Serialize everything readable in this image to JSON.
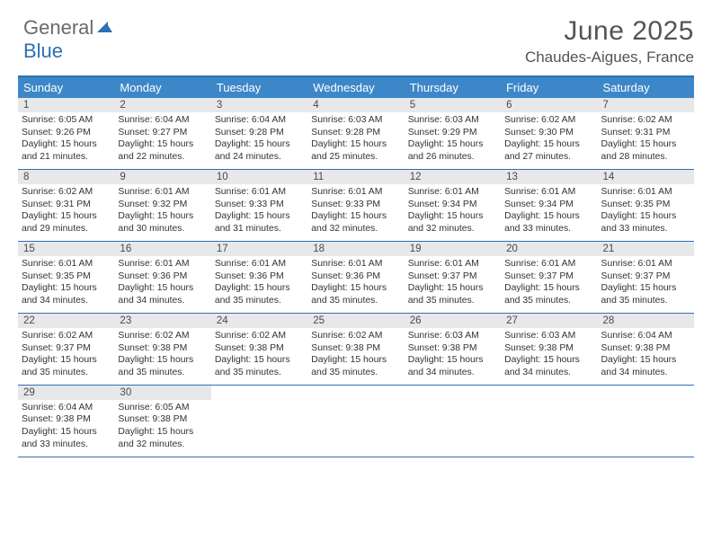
{
  "logo": {
    "word1": "General",
    "word2": "Blue"
  },
  "title": "June 2025",
  "location": "Chaudes-Aigues, France",
  "colors": {
    "header_bg": "#3d87c9",
    "border": "#2f6fb3",
    "daynum_bg": "#e7e8ea",
    "text": "#333333",
    "title_text": "#545454",
    "logo_gray": "#6a6a6a",
    "logo_blue": "#2f6fb3"
  },
  "day_headers": [
    "Sunday",
    "Monday",
    "Tuesday",
    "Wednesday",
    "Thursday",
    "Friday",
    "Saturday"
  ],
  "weeks": [
    [
      {
        "n": "1",
        "sunrise": "6:05 AM",
        "sunset": "9:26 PM",
        "dl_h": "15",
        "dl_m": "21"
      },
      {
        "n": "2",
        "sunrise": "6:04 AM",
        "sunset": "9:27 PM",
        "dl_h": "15",
        "dl_m": "22"
      },
      {
        "n": "3",
        "sunrise": "6:04 AM",
        "sunset": "9:28 PM",
        "dl_h": "15",
        "dl_m": "24"
      },
      {
        "n": "4",
        "sunrise": "6:03 AM",
        "sunset": "9:28 PM",
        "dl_h": "15",
        "dl_m": "25"
      },
      {
        "n": "5",
        "sunrise": "6:03 AM",
        "sunset": "9:29 PM",
        "dl_h": "15",
        "dl_m": "26"
      },
      {
        "n": "6",
        "sunrise": "6:02 AM",
        "sunset": "9:30 PM",
        "dl_h": "15",
        "dl_m": "27"
      },
      {
        "n": "7",
        "sunrise": "6:02 AM",
        "sunset": "9:31 PM",
        "dl_h": "15",
        "dl_m": "28"
      }
    ],
    [
      {
        "n": "8",
        "sunrise": "6:02 AM",
        "sunset": "9:31 PM",
        "dl_h": "15",
        "dl_m": "29"
      },
      {
        "n": "9",
        "sunrise": "6:01 AM",
        "sunset": "9:32 PM",
        "dl_h": "15",
        "dl_m": "30"
      },
      {
        "n": "10",
        "sunrise": "6:01 AM",
        "sunset": "9:33 PM",
        "dl_h": "15",
        "dl_m": "31"
      },
      {
        "n": "11",
        "sunrise": "6:01 AM",
        "sunset": "9:33 PM",
        "dl_h": "15",
        "dl_m": "32"
      },
      {
        "n": "12",
        "sunrise": "6:01 AM",
        "sunset": "9:34 PM",
        "dl_h": "15",
        "dl_m": "32"
      },
      {
        "n": "13",
        "sunrise": "6:01 AM",
        "sunset": "9:34 PM",
        "dl_h": "15",
        "dl_m": "33"
      },
      {
        "n": "14",
        "sunrise": "6:01 AM",
        "sunset": "9:35 PM",
        "dl_h": "15",
        "dl_m": "33"
      }
    ],
    [
      {
        "n": "15",
        "sunrise": "6:01 AM",
        "sunset": "9:35 PM",
        "dl_h": "15",
        "dl_m": "34"
      },
      {
        "n": "16",
        "sunrise": "6:01 AM",
        "sunset": "9:36 PM",
        "dl_h": "15",
        "dl_m": "34"
      },
      {
        "n": "17",
        "sunrise": "6:01 AM",
        "sunset": "9:36 PM",
        "dl_h": "15",
        "dl_m": "35"
      },
      {
        "n": "18",
        "sunrise": "6:01 AM",
        "sunset": "9:36 PM",
        "dl_h": "15",
        "dl_m": "35"
      },
      {
        "n": "19",
        "sunrise": "6:01 AM",
        "sunset": "9:37 PM",
        "dl_h": "15",
        "dl_m": "35"
      },
      {
        "n": "20",
        "sunrise": "6:01 AM",
        "sunset": "9:37 PM",
        "dl_h": "15",
        "dl_m": "35"
      },
      {
        "n": "21",
        "sunrise": "6:01 AM",
        "sunset": "9:37 PM",
        "dl_h": "15",
        "dl_m": "35"
      }
    ],
    [
      {
        "n": "22",
        "sunrise": "6:02 AM",
        "sunset": "9:37 PM",
        "dl_h": "15",
        "dl_m": "35"
      },
      {
        "n": "23",
        "sunrise": "6:02 AM",
        "sunset": "9:38 PM",
        "dl_h": "15",
        "dl_m": "35"
      },
      {
        "n": "24",
        "sunrise": "6:02 AM",
        "sunset": "9:38 PM",
        "dl_h": "15",
        "dl_m": "35"
      },
      {
        "n": "25",
        "sunrise": "6:02 AM",
        "sunset": "9:38 PM",
        "dl_h": "15",
        "dl_m": "35"
      },
      {
        "n": "26",
        "sunrise": "6:03 AM",
        "sunset": "9:38 PM",
        "dl_h": "15",
        "dl_m": "34"
      },
      {
        "n": "27",
        "sunrise": "6:03 AM",
        "sunset": "9:38 PM",
        "dl_h": "15",
        "dl_m": "34"
      },
      {
        "n": "28",
        "sunrise": "6:04 AM",
        "sunset": "9:38 PM",
        "dl_h": "15",
        "dl_m": "34"
      }
    ],
    [
      {
        "n": "29",
        "sunrise": "6:04 AM",
        "sunset": "9:38 PM",
        "dl_h": "15",
        "dl_m": "33"
      },
      {
        "n": "30",
        "sunrise": "6:05 AM",
        "sunset": "9:38 PM",
        "dl_h": "15",
        "dl_m": "32"
      },
      null,
      null,
      null,
      null,
      null
    ]
  ],
  "labels": {
    "sunrise": "Sunrise:",
    "sunset": "Sunset:",
    "daylight_pre": "Daylight:",
    "hours": "hours",
    "and": "and",
    "minutes": "minutes."
  }
}
